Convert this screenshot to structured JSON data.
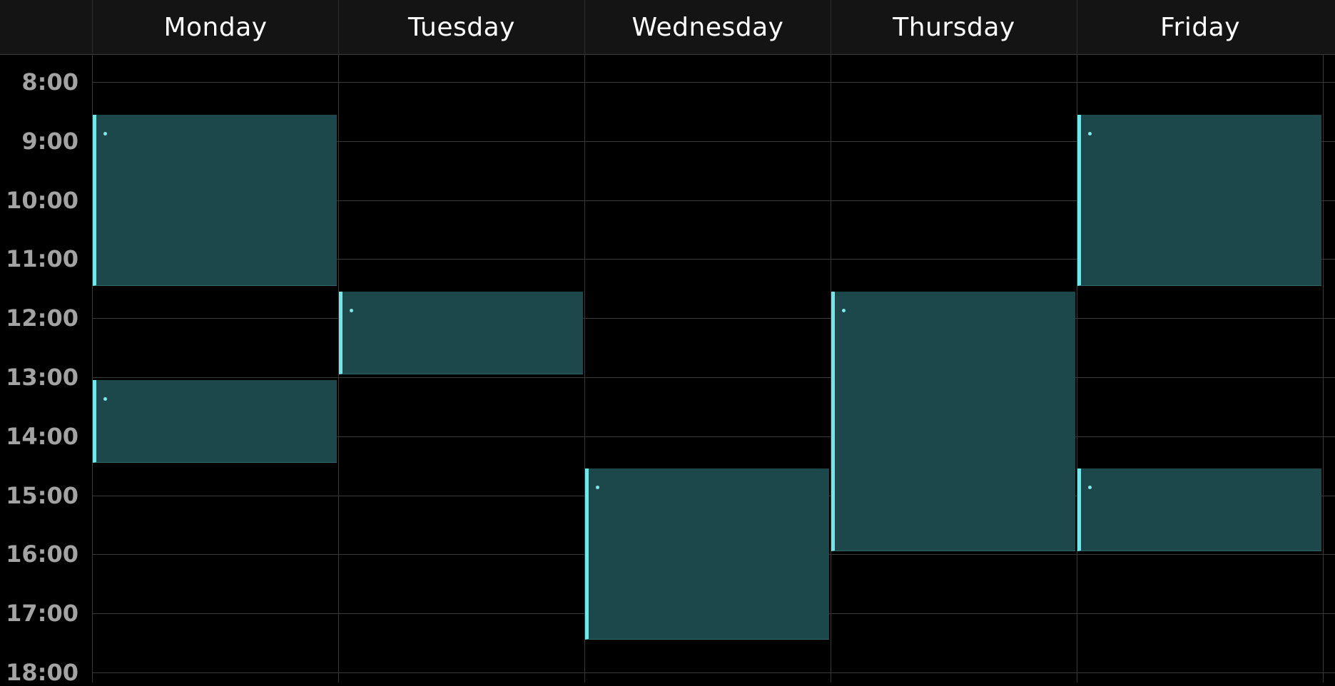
{
  "calendar": {
    "days": [
      "Monday",
      "Tuesday",
      "Wednesday",
      "Thursday",
      "Friday"
    ],
    "hours": [
      "8:00",
      "9:00",
      "10:00",
      "11:00",
      "12:00",
      "13:00",
      "14:00",
      "15:00",
      "16:00",
      "17:00",
      "18:00"
    ],
    "events": [
      {
        "day": 0,
        "start": 8.55,
        "end": 11.45
      },
      {
        "day": 0,
        "start": 13.05,
        "end": 14.45
      },
      {
        "day": 1,
        "start": 11.55,
        "end": 12.95
      },
      {
        "day": 2,
        "start": 14.55,
        "end": 17.45
      },
      {
        "day": 3,
        "start": 11.55,
        "end": 15.95
      },
      {
        "day": 4,
        "start": 8.55,
        "end": 11.45
      },
      {
        "day": 4,
        "start": 14.55,
        "end": 15.95
      }
    ],
    "colors": {
      "background": "#000000",
      "header": "#141414",
      "event_fill": "#1c484b",
      "event_accent": "#73e6ea",
      "grid_line": "#3b3b3b",
      "day_text": "#ffffff",
      "time_text": "#a3a3a3"
    }
  }
}
